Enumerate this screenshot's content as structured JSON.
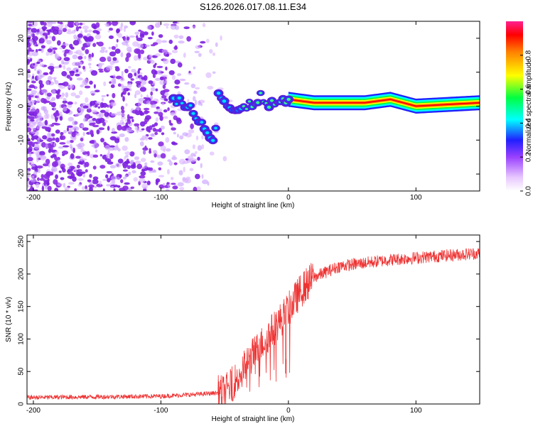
{
  "title": "S126.2026.017.08.11.E34",
  "chart_data": [
    {
      "type": "heatmap",
      "name": "spectrogram",
      "xlabel": "Height of straight line (km)",
      "ylabel": "Frequency (Hz)",
      "xlim": [
        -205,
        150
      ],
      "ylim": [
        -25,
        25
      ],
      "xticks": [
        -200,
        -100,
        0,
        100
      ],
      "yticks": [
        -20,
        -10,
        0,
        10,
        20
      ],
      "colorbar": {
        "label": "Normalized spectral amplitude",
        "range": [
          0,
          1
        ],
        "ticks": [
          0.0,
          0.2,
          0.4,
          0.6,
          0.8
        ]
      },
      "carrier_track": [
        {
          "x": -90,
          "y": 2
        },
        {
          "x": -80,
          "y": 1
        },
        {
          "x": -72,
          "y": -3
        },
        {
          "x": -65,
          "y": -6
        },
        {
          "x": -58,
          "y": -10
        },
        {
          "x": -55,
          "y": 4
        },
        {
          "x": -48,
          "y": 0
        },
        {
          "x": -40,
          "y": -2
        },
        {
          "x": -30,
          "y": 0
        },
        {
          "x": -22,
          "y": 3
        },
        {
          "x": -12,
          "y": 0
        },
        {
          "x": 0,
          "y": 2
        },
        {
          "x": 20,
          "y": 1
        },
        {
          "x": 60,
          "y": 1
        },
        {
          "x": 80,
          "y": 2
        },
        {
          "x": 100,
          "y": 0
        },
        {
          "x": 150,
          "y": 1
        }
      ]
    },
    {
      "type": "line",
      "name": "snr",
      "xlabel": "Height of straight line (km)",
      "ylabel": "SNR (10 * v/v)",
      "xlim": [
        -205,
        150
      ],
      "ylim": [
        0,
        260
      ],
      "xticks": [
        -200,
        -100,
        0,
        100
      ],
      "yticks": [
        0,
        50,
        100,
        150,
        200,
        250
      ],
      "color": "#ee3333",
      "trend": [
        {
          "x": -205,
          "y": 10
        },
        {
          "x": -100,
          "y": 12
        },
        {
          "x": -70,
          "y": 15
        },
        {
          "x": -50,
          "y": 18
        },
        {
          "x": -40,
          "y": 40
        },
        {
          "x": -30,
          "y": 70
        },
        {
          "x": -20,
          "y": 95
        },
        {
          "x": -10,
          "y": 120
        },
        {
          "x": 0,
          "y": 145
        },
        {
          "x": 10,
          "y": 175
        },
        {
          "x": 20,
          "y": 195
        },
        {
          "x": 40,
          "y": 212
        },
        {
          "x": 80,
          "y": 222
        },
        {
          "x": 120,
          "y": 228
        },
        {
          "x": 150,
          "y": 232
        }
      ]
    }
  ]
}
